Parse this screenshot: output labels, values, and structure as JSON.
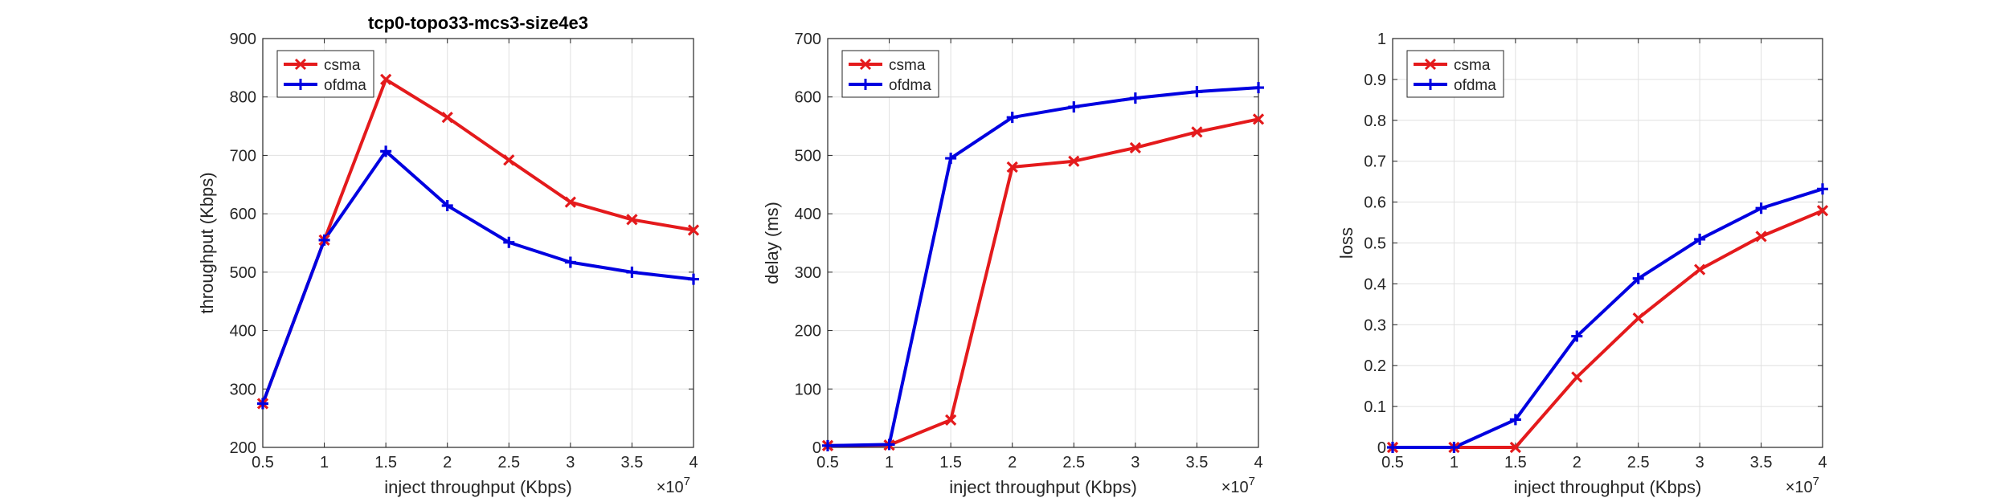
{
  "colors": {
    "csma": "#e41a1c",
    "ofdma": "#0000e0",
    "axis": "#262626",
    "grid": "#e0e0e0"
  },
  "chart_data": [
    {
      "type": "line",
      "title": "tcp0-topo33-mcs3-size4e3",
      "xlabel": "inject throughput (Kbps)",
      "ylabel": "throughput (Kbps)",
      "x_exponent": "×10",
      "x_exponent_power": "7",
      "x": [
        0.5,
        1,
        1.5,
        2,
        2.5,
        3,
        3.5,
        4
      ],
      "xlim": [
        0.5,
        4
      ],
      "ylim": [
        200,
        900
      ],
      "xticks": [
        "0.5",
        "1",
        "1.5",
        "2",
        "2.5",
        "3",
        "3.5",
        "4"
      ],
      "yticks": [
        "200",
        "300",
        "400",
        "500",
        "600",
        "700",
        "800",
        "900"
      ],
      "grid": true,
      "legend_position": "top-left",
      "series": [
        {
          "name": "csma",
          "color": "#e41a1c",
          "marker": "x",
          "values": [
            275,
            555,
            830,
            765,
            692,
            620,
            590,
            572
          ]
        },
        {
          "name": "ofdma",
          "color": "#0000e0",
          "marker": "+",
          "values": [
            275,
            555,
            707,
            614,
            551,
            517,
            500,
            488
          ]
        }
      ]
    },
    {
      "type": "line",
      "title": "",
      "xlabel": "inject throughput (Kbps)",
      "ylabel": "delay (ms)",
      "x_exponent": "×10",
      "x_exponent_power": "7",
      "x": [
        0.5,
        1,
        1.5,
        2,
        2.5,
        3,
        3.5,
        4
      ],
      "xlim": [
        0.5,
        4
      ],
      "ylim": [
        0,
        700
      ],
      "xticks": [
        "0.5",
        "1",
        "1.5",
        "2",
        "2.5",
        "3",
        "3.5",
        "4"
      ],
      "yticks": [
        "0",
        "100",
        "200",
        "300",
        "400",
        "500",
        "600",
        "700"
      ],
      "grid": true,
      "legend_position": "top-left",
      "series": [
        {
          "name": "csma",
          "color": "#e41a1c",
          "marker": "x",
          "values": [
            3,
            4,
            47,
            480,
            490,
            513,
            540,
            562
          ]
        },
        {
          "name": "ofdma",
          "color": "#0000e0",
          "marker": "+",
          "values": [
            3,
            5,
            495,
            565,
            583,
            598,
            609,
            616
          ]
        }
      ]
    },
    {
      "type": "line",
      "title": "",
      "xlabel": "inject throughput (Kbps)",
      "ylabel": "loss",
      "x_exponent": "×10",
      "x_exponent_power": "7",
      "x": [
        0.5,
        1,
        1.5,
        2,
        2.5,
        3,
        3.5,
        4
      ],
      "xlim": [
        0.5,
        4
      ],
      "ylim": [
        0,
        1
      ],
      "xticks": [
        "0.5",
        "1",
        "1.5",
        "2",
        "2.5",
        "3",
        "3.5",
        "4"
      ],
      "yticks": [
        "0",
        "0.1",
        "0.2",
        "0.3",
        "0.4",
        "0.5",
        "0.6",
        "0.7",
        "0.8",
        "0.9",
        "1"
      ],
      "grid": true,
      "legend_position": "top-left",
      "series": [
        {
          "name": "csma",
          "color": "#e41a1c",
          "marker": "x",
          "values": [
            0,
            0,
            0,
            0.172,
            0.316,
            0.435,
            0.516,
            0.579
          ]
        },
        {
          "name": "ofdma",
          "color": "#0000e0",
          "marker": "+",
          "values": [
            0,
            0,
            0.068,
            0.272,
            0.413,
            0.509,
            0.585,
            0.632
          ]
        }
      ]
    }
  ]
}
